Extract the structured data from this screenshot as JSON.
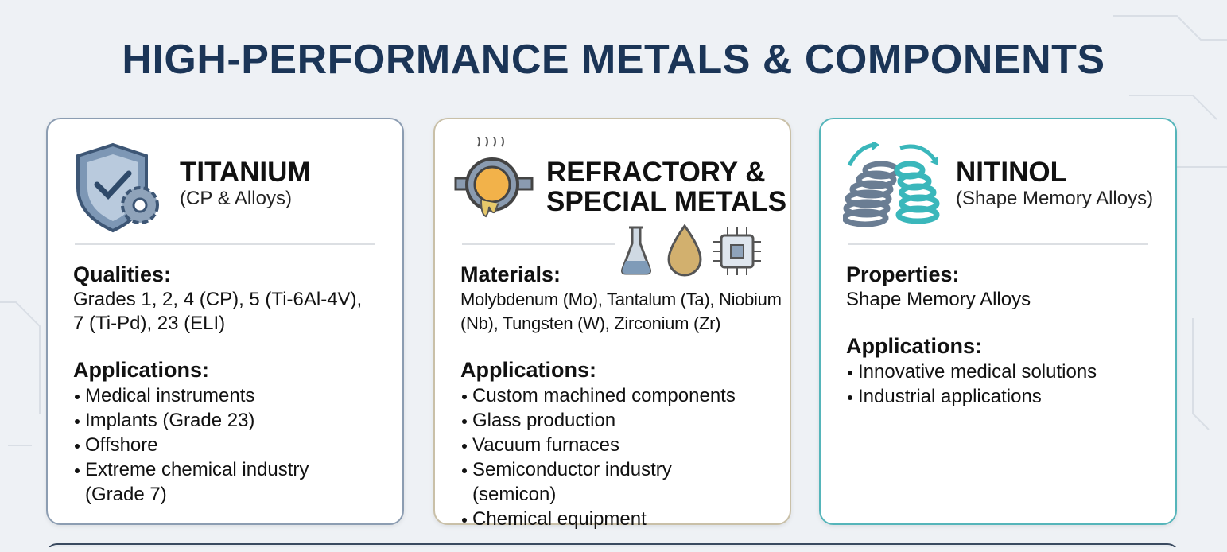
{
  "title": "HIGH-PERFORMANCE METALS & COMPONENTS",
  "cards": [
    {
      "heading": [
        "TITANIUM"
      ],
      "subheading": "(CP & Alloys)",
      "sections": [
        {
          "label": "Qualities:",
          "lines": [
            "Grades 1, 2, 4 (CP), 5 (Ti-6Al-4V),",
            "7 (Ti-Pd), 23 (ELI)"
          ]
        },
        {
          "label": "Applications:",
          "items": [
            "Medical instruments",
            "Implants (Grade 23)",
            "Offshore",
            "Extreme chemical industry (Grade 7)"
          ]
        }
      ]
    },
    {
      "heading": [
        "REFRACTORY &",
        "SPECIAL METALS"
      ],
      "sections": [
        {
          "label": "Materials:",
          "lines": [
            "Molybdenum (Mo), Tantalum (Ta), Niobium",
            "(Nb), Tungsten (W), Zirconium (Zr)"
          ]
        },
        {
          "label": "Applications:",
          "items": [
            "Custom machined components",
            "Glass production",
            "Vacuum furnaces",
            "Semiconductor industry (semicon)",
            "Chemical equipment"
          ]
        }
      ]
    },
    {
      "heading": [
        "NITINOL"
      ],
      "subheading": "(Shape Memory Alloys)",
      "sections": [
        {
          "label": "Properties:",
          "lines": [
            "Shape Memory Alloys"
          ]
        },
        {
          "label": "Applications:",
          "items": [
            "Innovative medical solutions",
            "Industrial applications"
          ]
        }
      ]
    }
  ]
}
